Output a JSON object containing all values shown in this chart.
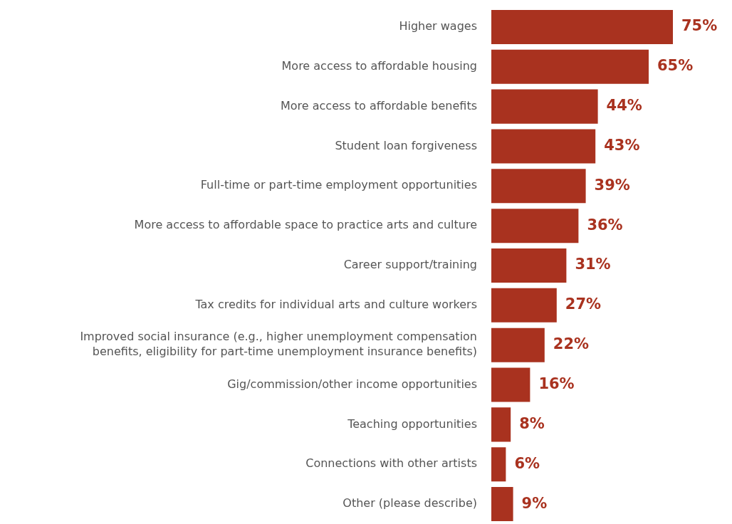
{
  "chart_data": {
    "type": "bar",
    "orientation": "horizontal",
    "categories": [
      "Higher wages",
      "More access to affordable housing",
      "More access to affordable benefits",
      "Student loan forgiveness",
      "Full-time or part-time employment opportunities",
      "More access to affordable space to practice arts and culture",
      "Career support/training",
      "Tax credits for individual arts and culture workers",
      "Improved social insurance (e.g., higher unemployment compensation benefits, eligibility for part-time unemployment insurance benefits)",
      "Gig/commission/other income opportunities",
      "Teaching opportunities",
      "Connections with other artists",
      "Other (please describe)"
    ],
    "values": [
      75,
      65,
      44,
      43,
      39,
      36,
      31,
      27,
      22,
      16,
      8,
      6,
      9
    ],
    "value_labels": [
      "75%",
      "65%",
      "44%",
      "43%",
      "39%",
      "36%",
      "31%",
      "27%",
      "22%",
      "16%",
      "8%",
      "6%",
      "9%"
    ],
    "color": "#a9321f",
    "tick_labels": "y",
    "grid": false,
    "legend": false
  }
}
